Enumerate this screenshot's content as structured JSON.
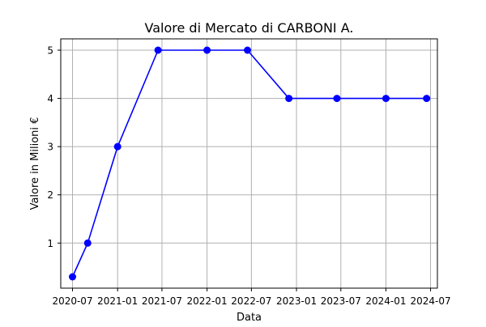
{
  "chart_data": {
    "type": "line",
    "title": "Valore di Mercato di CARBONI A.",
    "xlabel": "Data",
    "ylabel": "Valore in Milioni €",
    "x": [
      "2020-07-01",
      "2020-09-01",
      "2021-01-01",
      "2021-06-15",
      "2022-01-01",
      "2022-06-15",
      "2022-12-01",
      "2023-06-15",
      "2024-01-01",
      "2024-06-15"
    ],
    "series": [
      {
        "values": [
          0.3,
          1,
          3,
          5,
          5,
          5,
          4,
          4,
          4,
          4
        ],
        "color": "#0000ff",
        "marker": "circle"
      }
    ],
    "xticks": [
      "2020-07",
      "2021-01",
      "2021-07",
      "2022-01",
      "2022-07",
      "2023-01",
      "2023-07",
      "2024-01",
      "2024-07"
    ],
    "yticks": [
      1,
      2,
      3,
      4,
      5
    ],
    "xlim": [
      "2020-05-14",
      "2024-07-29"
    ],
    "ylim": [
      0.065,
      5.235
    ],
    "grid": true,
    "legend": false
  }
}
